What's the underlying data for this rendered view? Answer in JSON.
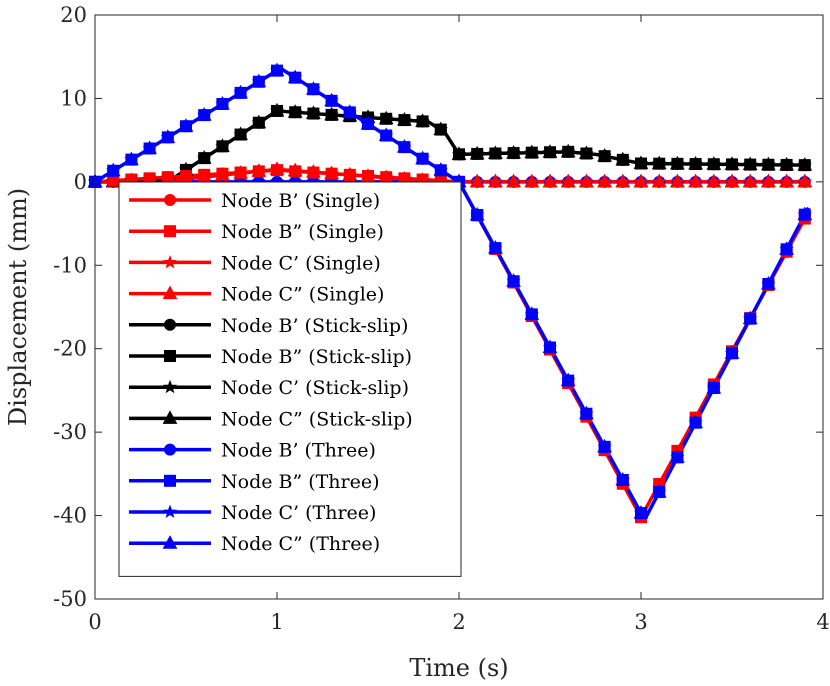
{
  "chart_data": {
    "type": "line",
    "xlabel": "Time (s)",
    "ylabel": "Displacement (mm)",
    "xlim": [
      0,
      4
    ],
    "ylim": [
      -50,
      20
    ],
    "xticks": [
      0,
      1,
      2,
      3,
      4
    ],
    "yticks": [
      20,
      10,
      0,
      -10,
      -20,
      -30,
      -40,
      -50
    ],
    "legend_position": "left-center",
    "series": [
      {
        "name": "Node B’ (Single)",
        "color": "#ff0000",
        "marker": "circle",
        "group": "single_small"
      },
      {
        "name": "Node B” (Single)",
        "color": "#ff0000",
        "marker": "square",
        "group": "single_small"
      },
      {
        "name": "Node C’ (Single)",
        "color": "#ff0000",
        "marker": "star",
        "group": "single_large"
      },
      {
        "name": "Node C” (Single)",
        "color": "#ff0000",
        "marker": "triangle",
        "group": "single_large"
      },
      {
        "name": "Node B’ (Stick-slip)",
        "color": "#000000",
        "marker": "circle",
        "group": "stick_large"
      },
      {
        "name": "Node B” (Stick-slip)",
        "color": "#000000",
        "marker": "square",
        "group": "stick_large"
      },
      {
        "name": "Node C’ (Stick-slip)",
        "color": "#000000",
        "marker": "star",
        "group": "stick_large"
      },
      {
        "name": "Node C” (Stick-slip)",
        "color": "#000000",
        "marker": "triangle",
        "group": "stick_large"
      },
      {
        "name": "Node B’ (Three)",
        "color": "#0000ff",
        "marker": "circle",
        "group": "three_main"
      },
      {
        "name": "Node B” (Three)",
        "color": "#0000ff",
        "marker": "square",
        "group": "three_main"
      },
      {
        "name": "Node C’ (Three)",
        "color": "#0000ff",
        "marker": "star",
        "group": "three_main"
      },
      {
        "name": "Node C” (Three)",
        "color": "#0000ff",
        "marker": "triangle",
        "group": "three_main"
      }
    ],
    "curves": {
      "single_small": [
        [
          0,
          0
        ],
        [
          1,
          1.4
        ],
        [
          2,
          0
        ],
        [
          3,
          -40.2
        ],
        [
          3.92,
          -3.6
        ]
      ],
      "single_large": [
        [
          0,
          0
        ],
        [
          0.35,
          0
        ],
        [
          1,
          1.5
        ],
        [
          1.9,
          0
        ],
        [
          2,
          0
        ],
        [
          3.92,
          0
        ]
      ],
      "stick_large": [
        [
          0,
          0
        ],
        [
          0.42,
          0.3
        ],
        [
          1,
          8.5
        ],
        [
          1.83,
          7.2
        ],
        [
          1.92,
          6
        ],
        [
          2,
          3.3
        ],
        [
          2.6,
          3.6
        ],
        [
          2.75,
          3.3
        ],
        [
          3,
          2.2
        ],
        [
          3.92,
          2
        ]
      ],
      "three_main": [
        [
          0,
          0
        ],
        [
          1.02,
          13.6
        ],
        [
          2,
          0
        ],
        [
          3.02,
          -40.5
        ],
        [
          3.92,
          -3.1
        ]
      ],
      "three_flat": [
        [
          0,
          0
        ],
        [
          2,
          0
        ],
        [
          3.92,
          0
        ]
      ]
    }
  }
}
